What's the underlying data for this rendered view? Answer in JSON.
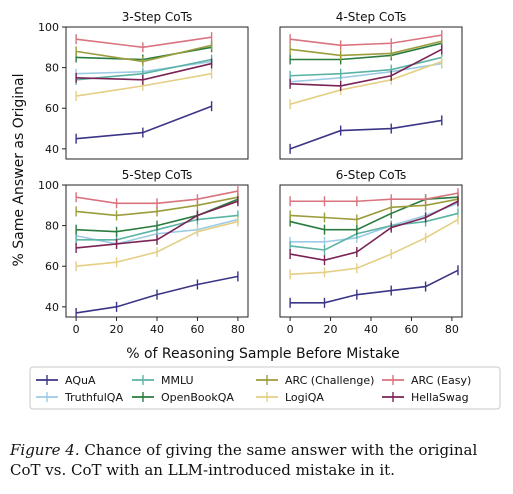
{
  "figure": {
    "ylabel": "% Same Answer as Original",
    "xlabel": "% of Reasoning Sample Before Mistake",
    "caption_label": "Figure 4.",
    "caption_text": " Chance of giving the same answer with the original CoT vs. CoT with an LLM-introduced mistake in it."
  },
  "legend": [
    {
      "name": "AQuA",
      "color": "#3b3587"
    },
    {
      "name": "TruthfulQA",
      "color": "#9ccbe6"
    },
    {
      "name": "MMLU",
      "color": "#5bb3a3"
    },
    {
      "name": "OpenBookQA",
      "color": "#2a7c3e"
    },
    {
      "name": "ARC (Challenge)",
      "color": "#9c9c3c"
    },
    {
      "name": "LogiQA",
      "color": "#e4cf84"
    },
    {
      "name": "ARC (Easy)",
      "color": "#d9737e"
    },
    {
      "name": "HellaSwag",
      "color": "#7a2355"
    }
  ],
  "chart_data": [
    {
      "type": "line",
      "title": "3-Step CoTs",
      "x": [
        0,
        33,
        67
      ],
      "ylim": [
        35,
        100
      ],
      "xlim": [
        -5,
        85
      ],
      "yticks": [
        40,
        60,
        80,
        100
      ],
      "xticks": [],
      "series": [
        {
          "name": "AQuA",
          "values": [
            45,
            48,
            61
          ]
        },
        {
          "name": "TruthfulQA",
          "values": [
            77,
            78,
            83
          ]
        },
        {
          "name": "MMLU",
          "values": [
            74,
            77,
            84
          ]
        },
        {
          "name": "OpenBookQA",
          "values": [
            85,
            84,
            90
          ]
        },
        {
          "name": "ARC (Challenge)",
          "values": [
            88,
            83,
            91
          ]
        },
        {
          "name": "LogiQA",
          "values": [
            66,
            71,
            77
          ]
        },
        {
          "name": "ARC (Easy)",
          "values": [
            94,
            90,
            95
          ]
        },
        {
          "name": "HellaSwag",
          "values": [
            75,
            74,
            82
          ]
        }
      ]
    },
    {
      "type": "line",
      "title": "4-Step CoTs",
      "x": [
        0,
        25,
        50,
        75
      ],
      "ylim": [
        35,
        100
      ],
      "xlim": [
        -5,
        85
      ],
      "yticks": [],
      "xticks": [],
      "series": [
        {
          "name": "AQuA",
          "values": [
            40,
            49,
            50,
            54
          ]
        },
        {
          "name": "TruthfulQA",
          "values": [
            73,
            75,
            78,
            82
          ]
        },
        {
          "name": "MMLU",
          "values": [
            76,
            77,
            79,
            85
          ]
        },
        {
          "name": "OpenBookQA",
          "values": [
            84,
            84,
            86,
            92
          ]
        },
        {
          "name": "ARC (Challenge)",
          "values": [
            89,
            86,
            87,
            93
          ]
        },
        {
          "name": "LogiQA",
          "values": [
            62,
            69,
            74,
            83
          ]
        },
        {
          "name": "ARC (Easy)",
          "values": [
            94,
            91,
            92,
            96
          ]
        },
        {
          "name": "HellaSwag",
          "values": [
            72,
            71,
            76,
            89
          ]
        }
      ]
    },
    {
      "type": "line",
      "title": "5-Step CoTs",
      "x": [
        0,
        20,
        40,
        60,
        80
      ],
      "ylim": [
        35,
        100
      ],
      "xlim": [
        -5,
        85
      ],
      "yticks": [
        40,
        60,
        80,
        100
      ],
      "xticks": [
        0,
        20,
        40,
        60,
        80
      ],
      "series": [
        {
          "name": "AQuA",
          "values": [
            37,
            40,
            46,
            51,
            55
          ]
        },
        {
          "name": "TruthfulQA",
          "values": [
            75,
            71,
            76,
            78,
            83
          ]
        },
        {
          "name": "MMLU",
          "values": [
            73,
            73,
            78,
            83,
            85
          ]
        },
        {
          "name": "OpenBookQA",
          "values": [
            78,
            77,
            80,
            85,
            93
          ]
        },
        {
          "name": "ARC (Challenge)",
          "values": [
            87,
            85,
            87,
            90,
            94
          ]
        },
        {
          "name": "LogiQA",
          "values": [
            60,
            62,
            67,
            77,
            82
          ]
        },
        {
          "name": "ARC (Easy)",
          "values": [
            94,
            91,
            91,
            93,
            97
          ]
        },
        {
          "name": "HellaSwag",
          "values": [
            69,
            71,
            73,
            85,
            92
          ]
        }
      ]
    },
    {
      "type": "line",
      "title": "6-Step CoTs",
      "x": [
        0,
        17,
        33,
        50,
        67,
        83
      ],
      "ylim": [
        35,
        100
      ],
      "xlim": [
        -5,
        85
      ],
      "yticks": [],
      "xticks": [
        0,
        20,
        40,
        60,
        80
      ],
      "series": [
        {
          "name": "AQuA",
          "values": [
            42,
            42,
            46,
            48,
            50,
            58
          ]
        },
        {
          "name": "TruthfulQA",
          "values": [
            72,
            72,
            74,
            80,
            85,
            91
          ]
        },
        {
          "name": "MMLU",
          "values": [
            70,
            68,
            76,
            80,
            82,
            86
          ]
        },
        {
          "name": "OpenBookQA",
          "values": [
            82,
            78,
            78,
            86,
            93,
            94
          ]
        },
        {
          "name": "ARC (Challenge)",
          "values": [
            85,
            84,
            83,
            89,
            90,
            93
          ]
        },
        {
          "name": "LogiQA",
          "values": [
            56,
            57,
            59,
            66,
            74,
            83
          ]
        },
        {
          "name": "ARC (Easy)",
          "values": [
            92,
            92,
            92,
            93,
            93,
            96
          ]
        },
        {
          "name": "HellaSwag",
          "values": [
            66,
            63,
            67,
            79,
            84,
            92
          ]
        }
      ]
    }
  ]
}
